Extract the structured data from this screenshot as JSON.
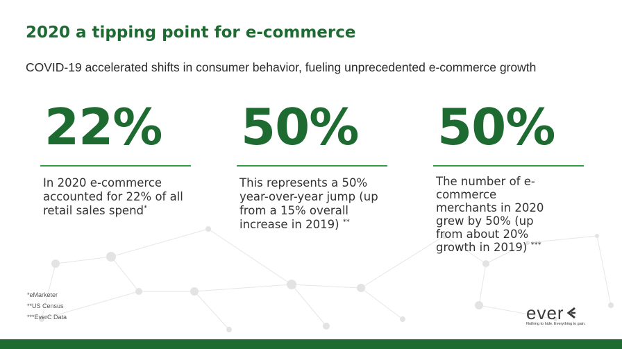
{
  "slide": {
    "title": "2020 a tipping point for e-commerce",
    "subtitle": "COVID-19 accelerated shifts in consumer behavior, fueling unprecedented e-commerce growth"
  },
  "stats": [
    {
      "value": "22%",
      "text": "In 2020 e-commerce accounted for 22% of all retail sales spend",
      "marker": "*"
    },
    {
      "value": "50%",
      "text": "This represents a 50% year-over-year jump (up from a 15% overall increase in 2019)",
      "marker": "**"
    },
    {
      "value": "50%",
      "text": "The number of e-commerce merchants in 2020 grew by 50% (up from about 20% growth in 2019)",
      "marker": "***"
    }
  ],
  "footnotes": [
    "*eMarketer",
    "**US Census",
    "***EverC Data"
  ],
  "logo": {
    "word": "ever",
    "tagline": "Nothing to hide. Everything to gain."
  },
  "colors": {
    "brand_green": "#1e6b32",
    "rule_green": "#2f9e44",
    "network_gray": "#e3e3e3"
  },
  "icons": {
    "logo_mark": "everc-arrow-mark-icon",
    "background": "network-graph-decoration"
  }
}
